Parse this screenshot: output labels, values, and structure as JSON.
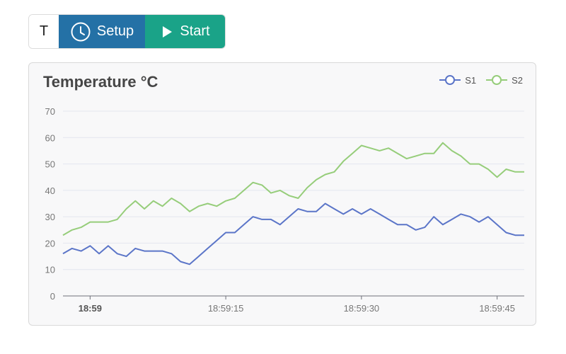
{
  "toolbar": {
    "t_label": "T",
    "setup_label": "Setup",
    "start_label": "Start",
    "setup_color": "#2471a6",
    "start_color": "#1aa388"
  },
  "chart_data": {
    "type": "line",
    "title": "Temperature °C",
    "ylim": [
      0,
      70
    ],
    "yticks": [
      0,
      10,
      20,
      30,
      40,
      50,
      60,
      70
    ],
    "grid": true,
    "legend_position": "top-right",
    "x_seconds_labels": [
      {
        "t": 59,
        "label": "18:59",
        "bold": true
      },
      {
        "t": 74,
        "label": "18:59:15",
        "bold": false
      },
      {
        "t": 89,
        "label": "18:59:30",
        "bold": false
      },
      {
        "t": 104,
        "label": "18:59:45",
        "bold": false
      }
    ],
    "x": [
      56,
      57,
      58,
      59,
      60,
      61,
      62,
      63,
      64,
      65,
      66,
      67,
      68,
      69,
      70,
      71,
      72,
      73,
      74,
      75,
      76,
      77,
      78,
      79,
      80,
      81,
      82,
      83,
      84,
      85,
      86,
      87,
      88,
      89,
      90,
      91,
      92,
      93,
      94,
      95,
      96,
      97,
      98,
      99,
      100,
      101,
      102,
      103,
      104,
      105,
      106,
      107
    ],
    "series": [
      {
        "name": "S1",
        "color": "#5b75c8",
        "values": [
          16,
          18,
          17,
          19,
          16,
          19,
          16,
          15,
          18,
          17,
          17,
          17,
          16,
          13,
          12,
          15,
          18,
          21,
          24,
          24,
          27,
          30,
          29,
          29,
          27,
          30,
          33,
          32,
          32,
          35,
          33,
          31,
          33,
          31,
          33,
          31,
          29,
          27,
          27,
          25,
          26,
          30,
          27,
          29,
          31,
          30,
          28,
          30,
          27,
          24,
          23,
          23
        ]
      },
      {
        "name": "S2",
        "color": "#96cd7a",
        "values": [
          23,
          25,
          26,
          28,
          28,
          28,
          29,
          33,
          36,
          33,
          36,
          34,
          37,
          35,
          32,
          34,
          35,
          34,
          36,
          37,
          40,
          43,
          42,
          39,
          40,
          38,
          37,
          41,
          44,
          46,
          47,
          51,
          54,
          57,
          56,
          55,
          56,
          54,
          52,
          53,
          54,
          54,
          58,
          55,
          53,
          50,
          50,
          48,
          45,
          48,
          47,
          47
        ]
      }
    ]
  }
}
